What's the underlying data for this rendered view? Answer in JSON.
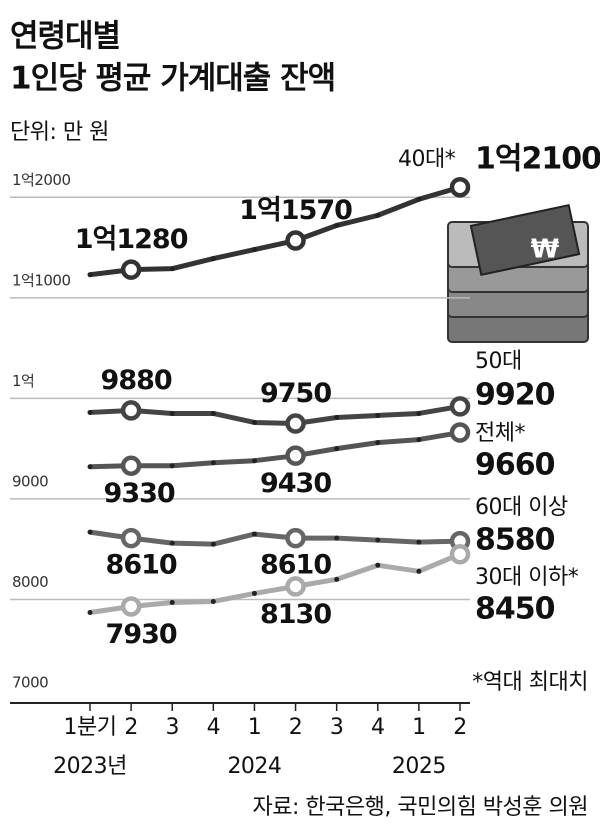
{
  "chart_data": {
    "type": "line",
    "title": [
      "연령대별",
      "1인당 평균 가계대출 잔액"
    ],
    "unit": "단위: 만 원",
    "categories": [
      "1분기",
      "2",
      "3",
      "4",
      "1",
      "2",
      "3",
      "4",
      "1",
      "2"
    ],
    "year_labels": [
      "2023년",
      "2024",
      "2025"
    ],
    "ylim": [
      7000,
      12500
    ],
    "yticks": [
      7000,
      8000,
      9000,
      {
        "value": 10000,
        "label": "1억"
      },
      {
        "value": 11000,
        "label": "1억1000"
      },
      {
        "value": 12000,
        "label": "1억2000"
      }
    ],
    "grid": true,
    "series": [
      {
        "name": "40대*",
        "color": "#333333",
        "values": [
          11230,
          11280,
          11290,
          11390,
          11480,
          11570,
          11720,
          11820,
          11980,
          12100
        ],
        "value_labels": [
          null,
          "1억1280",
          null,
          null,
          null,
          "1억1570",
          null,
          null,
          null,
          "1억2100"
        ]
      },
      {
        "name": "50대",
        "color": "#444444",
        "values": [
          9860,
          9880,
          9850,
          9850,
          9760,
          9750,
          9810,
          9830,
          9850,
          9920
        ]
      },
      {
        "name": "전체*",
        "color": "#555555",
        "values": [
          9320,
          9330,
          9330,
          9360,
          9380,
          9430,
          9500,
          9560,
          9590,
          9660
        ]
      },
      {
        "name": "60대 이상",
        "color": "#666666",
        "values": [
          8670,
          8610,
          8560,
          8550,
          8650,
          8610,
          8610,
          8590,
          8570,
          8580
        ]
      },
      {
        "name": "30대 이하*",
        "color": "#aaaaaa",
        "values": [
          7870,
          7930,
          7970,
          7980,
          8060,
          8130,
          8200,
          8340,
          8280,
          8450
        ]
      }
    ],
    "labeled_points": [
      1,
      5,
      9
    ],
    "note": "*역대 최대치",
    "source": "자료: 한국은행, 국민의힘 박성훈 의원"
  }
}
